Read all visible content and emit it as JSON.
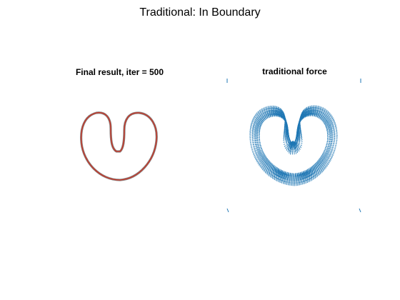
{
  "figure": {
    "suptitle": "Traditional: In Boundary",
    "left_panel": {
      "title": "Final result,  iter = 500"
    },
    "right_panel": {
      "title": "traditional force"
    },
    "colors": {
      "contour": "#c0392b",
      "contour_inner": "#8a8a8a",
      "arrows": "#1f77b4"
    }
  }
}
